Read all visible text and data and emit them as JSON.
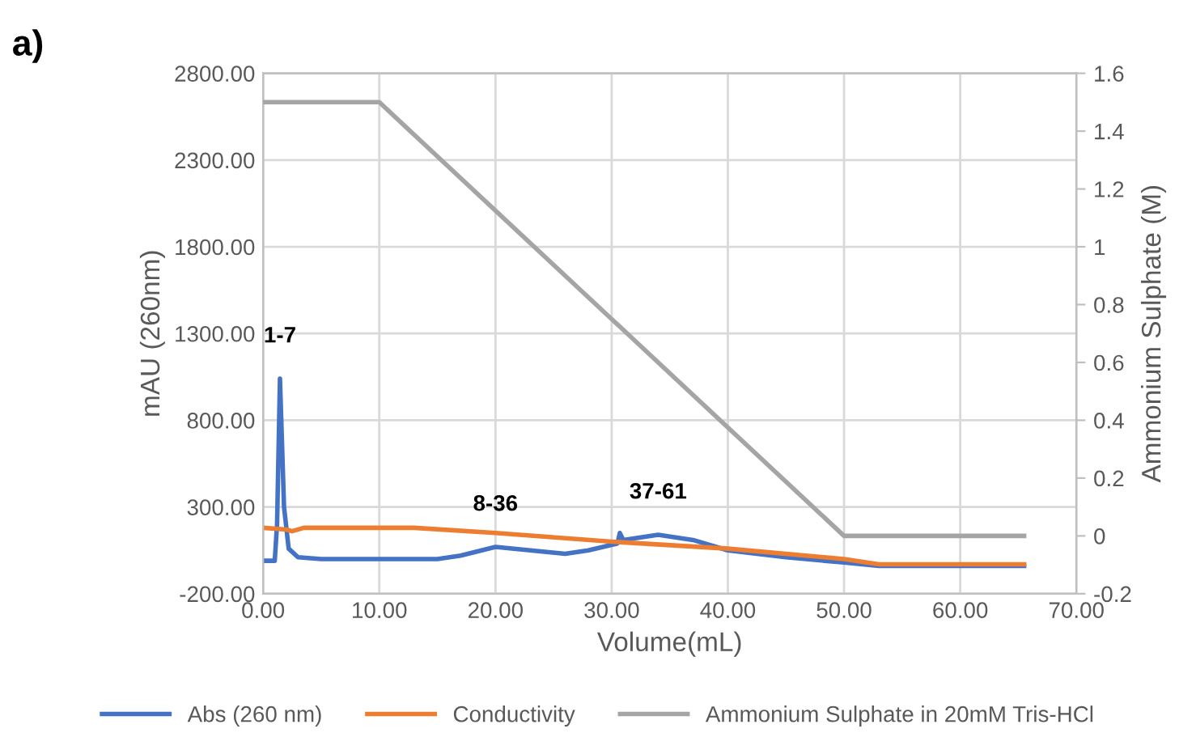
{
  "chart_data": {
    "type": "line",
    "title": "a)",
    "xlabel": "Volume(mL)",
    "ylabel": "mAU (260nm)",
    "y2label": "Ammonium Sulphate (M)",
    "series": [
      {
        "name": "Abs (260 nm)",
        "color": "#4472c4",
        "x": [
          0,
          1.0,
          1.2,
          1.45,
          1.8,
          2.2,
          3,
          5,
          15,
          17,
          20,
          23,
          26,
          28,
          30.5,
          30.7,
          31,
          34,
          37,
          40,
          45,
          50,
          53,
          65.5
        ],
        "values": [
          -10,
          -10,
          200,
          1040,
          300,
          60,
          10,
          0,
          0,
          20,
          70,
          50,
          30,
          50,
          90,
          150,
          110,
          140,
          110,
          50,
          10,
          -20,
          -40,
          -40
        ]
      },
      {
        "name": "Conductivity",
        "color": "#ed7d31",
        "x": [
          0,
          2,
          2.5,
          3.5,
          13,
          20,
          30,
          40,
          50,
          53,
          65.5
        ],
        "values": [
          180,
          170,
          160,
          180,
          180,
          150,
          100,
          60,
          0,
          -30,
          -30
        ]
      },
      {
        "name": "Ammonium Sulphate in 20mM Tris-HCl",
        "color": "#a5a5a5",
        "axis": "y2",
        "x": [
          0,
          10,
          50,
          65.5
        ],
        "values": [
          1.5,
          1.5,
          0,
          0
        ]
      }
    ],
    "annotations": [
      {
        "text": "1-7",
        "x": 1.45,
        "y": 1040
      },
      {
        "text": "8-36",
        "x": 20,
        "y": 70
      },
      {
        "text": "37-61",
        "x": 34,
        "y": 140
      }
    ],
    "xlim": [
      0,
      70
    ],
    "xticks": [
      {
        "value": 0,
        "label": "0.00"
      },
      {
        "value": 10,
        "label": "10.00"
      },
      {
        "value": 20,
        "label": "20.00"
      },
      {
        "value": 30,
        "label": "30.00"
      },
      {
        "value": 40,
        "label": "40.00"
      },
      {
        "value": 50,
        "label": "50.00"
      },
      {
        "value": 60,
        "label": "60.00"
      },
      {
        "value": 70,
        "label": "70.00"
      }
    ],
    "ylim": [
      -200,
      2800
    ],
    "yticks": [
      {
        "value": -200,
        "label": "-200.00"
      },
      {
        "value": 300,
        "label": "300.00"
      },
      {
        "value": 800,
        "label": "800.00"
      },
      {
        "value": 1300,
        "label": "1300.00"
      },
      {
        "value": 1800,
        "label": "1800.00"
      },
      {
        "value": 2300,
        "label": "2300.00"
      },
      {
        "value": 2800,
        "label": "2800.00"
      }
    ],
    "y2lim": [
      -0.2,
      1.6
    ],
    "y2ticks": [
      -0.2,
      0,
      0.2,
      0.4,
      0.6,
      0.8,
      1,
      1.2,
      1.4,
      1.6
    ],
    "grid": true,
    "legend": "bottom",
    "marker": "none",
    "line_style": "solid"
  }
}
